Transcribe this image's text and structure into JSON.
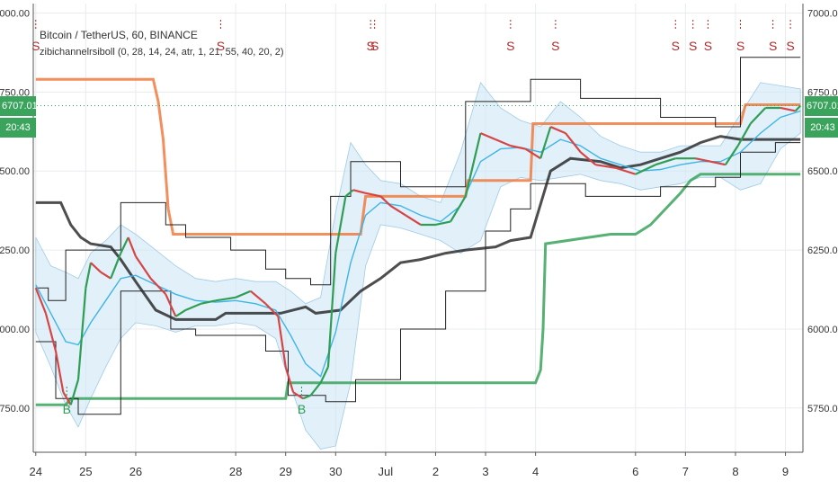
{
  "header": {
    "symbol": "Bitcoin / TetherUS, 60, BINANCE",
    "indicator": "zibichannelrsiboll (0, 28, 14, 24, atr, 1, 21, 55, 40, 20, 2)"
  },
  "price_badge": {
    "price": "6707.01",
    "time": "20:43",
    "color": "#3aa35c"
  },
  "colors": {
    "up_candle": "#2e9e55",
    "down_candle": "#d64545",
    "upper_stop": "#f07b3f",
    "lower_stop": "#3aa35c",
    "channel_black": "#222222",
    "ma_blue": "#3eb5e5",
    "bollinger_fill": "#cfe6f5",
    "sell_mark": "#b02a2a",
    "buy_mark": "#2e9e55",
    "grid": "#e8ecef"
  },
  "chart_data": {
    "type": "line",
    "title": "Bitcoin / TetherUS, 60, BINANCE",
    "y_ticks": [
      "7000.00",
      "6750.00",
      "6500.00",
      "6250.00",
      "6000.00",
      "5750.00"
    ],
    "ylim": [
      5610,
      7030
    ],
    "x_ticks": [
      {
        "label": "24",
        "x": 0
      },
      {
        "label": "25",
        "x": 1
      },
      {
        "label": "26",
        "x": 2
      },
      {
        "label": "28",
        "x": 4
      },
      {
        "label": "29",
        "x": 5
      },
      {
        "label": "30",
        "x": 6
      },
      {
        "label": "Jul",
        "x": 7
      },
      {
        "label": "2",
        "x": 8
      },
      {
        "label": "3",
        "x": 9
      },
      {
        "label": "4",
        "x": 10
      },
      {
        "label": "6",
        "x": 12
      },
      {
        "label": "7",
        "x": 13
      },
      {
        "label": "8",
        "x": 14
      },
      {
        "label": "9",
        "x": 15
      }
    ],
    "xlim": [
      -0.05,
      15.35
    ],
    "grid": true,
    "current_price": 6707.01,
    "price_series": [
      [
        0.0,
        6130
      ],
      [
        0.2,
        6050
      ],
      [
        0.4,
        5930
      ],
      [
        0.55,
        5800
      ],
      [
        0.7,
        5760
      ],
      [
        0.85,
        5840
      ],
      [
        1.0,
        6130
      ],
      [
        1.1,
        6210
      ],
      [
        1.3,
        6180
      ],
      [
        1.5,
        6160
      ],
      [
        1.7,
        6240
      ],
      [
        1.85,
        6290
      ],
      [
        2.0,
        6230
      ],
      [
        2.3,
        6160
      ],
      [
        2.6,
        6110
      ],
      [
        2.8,
        6040
      ],
      [
        3.0,
        6060
      ],
      [
        3.3,
        6080
      ],
      [
        3.6,
        6090
      ],
      [
        4.0,
        6100
      ],
      [
        4.3,
        6120
      ],
      [
        4.6,
        6080
      ],
      [
        4.85,
        6040
      ],
      [
        5.0,
        5880
      ],
      [
        5.15,
        5800
      ],
      [
        5.35,
        5780
      ],
      [
        5.5,
        5790
      ],
      [
        5.7,
        5830
      ],
      [
        5.85,
        5880
      ],
      [
        6.0,
        6240
      ],
      [
        6.2,
        6420
      ],
      [
        6.35,
        6440
      ],
      [
        6.6,
        6430
      ],
      [
        6.9,
        6420
      ],
      [
        7.1,
        6390
      ],
      [
        7.4,
        6360
      ],
      [
        7.7,
        6330
      ],
      [
        8.0,
        6330
      ],
      [
        8.3,
        6340
      ],
      [
        8.6,
        6420
      ],
      [
        8.9,
        6620
      ],
      [
        9.2,
        6600
      ],
      [
        9.5,
        6580
      ],
      [
        9.8,
        6570
      ],
      [
        10.1,
        6540
      ],
      [
        10.3,
        6640
      ],
      [
        10.6,
        6620
      ],
      [
        10.9,
        6560
      ],
      [
        11.2,
        6520
      ],
      [
        11.6,
        6510
      ],
      [
        12.0,
        6490
      ],
      [
        12.4,
        6520
      ],
      [
        12.8,
        6540
      ],
      [
        13.2,
        6540
      ],
      [
        13.5,
        6530
      ],
      [
        13.8,
        6520
      ],
      [
        14.05,
        6580
      ],
      [
        14.3,
        6650
      ],
      [
        14.6,
        6700
      ],
      [
        14.9,
        6700
      ],
      [
        15.2,
        6690
      ],
      [
        15.3,
        6707
      ]
    ],
    "ma_series": [
      [
        0.0,
        6140
      ],
      [
        0.3,
        6050
      ],
      [
        0.6,
        5960
      ],
      [
        0.85,
        5950
      ],
      [
        1.1,
        6020
      ],
      [
        1.4,
        6090
      ],
      [
        1.7,
        6160
      ],
      [
        2.0,
        6170
      ],
      [
        2.4,
        6140
      ],
      [
        2.8,
        6110
      ],
      [
        3.2,
        6090
      ],
      [
        3.6,
        6085
      ],
      [
        4.0,
        6090
      ],
      [
        4.4,
        6080
      ],
      [
        4.8,
        6060
      ],
      [
        5.1,
        5980
      ],
      [
        5.4,
        5890
      ],
      [
        5.7,
        5850
      ],
      [
        6.0,
        5990
      ],
      [
        6.3,
        6210
      ],
      [
        6.6,
        6360
      ],
      [
        6.9,
        6400
      ],
      [
        7.3,
        6390
      ],
      [
        7.7,
        6360
      ],
      [
        8.1,
        6340
      ],
      [
        8.5,
        6390
      ],
      [
        8.9,
        6530
      ],
      [
        9.3,
        6570
      ],
      [
        9.7,
        6575
      ],
      [
        10.1,
        6560
      ],
      [
        10.5,
        6600
      ],
      [
        10.9,
        6580
      ],
      [
        11.3,
        6540
      ],
      [
        11.7,
        6520
      ],
      [
        12.1,
        6500
      ],
      [
        12.5,
        6505
      ],
      [
        12.9,
        6520
      ],
      [
        13.3,
        6530
      ],
      [
        13.7,
        6530
      ],
      [
        14.1,
        6560
      ],
      [
        14.5,
        6620
      ],
      [
        14.9,
        6670
      ],
      [
        15.3,
        6690
      ]
    ],
    "band_upper": [
      [
        0.0,
        6290
      ],
      [
        0.3,
        6200
      ],
      [
        0.6,
        6180
      ],
      [
        0.85,
        6160
      ],
      [
        1.1,
        6240
      ],
      [
        1.4,
        6280
      ],
      [
        1.7,
        6330
      ],
      [
        2.0,
        6300
      ],
      [
        2.4,
        6250
      ],
      [
        2.8,
        6200
      ],
      [
        3.2,
        6160
      ],
      [
        3.6,
        6150
      ],
      [
        4.0,
        6160
      ],
      [
        4.4,
        6150
      ],
      [
        4.8,
        6150
      ],
      [
        5.1,
        6120
      ],
      [
        5.4,
        6080
      ],
      [
        5.7,
        6100
      ],
      [
        6.0,
        6370
      ],
      [
        6.3,
        6590
      ],
      [
        6.6,
        6520
      ],
      [
        6.9,
        6470
      ],
      [
        7.3,
        6460
      ],
      [
        7.7,
        6420
      ],
      [
        8.1,
        6400
      ],
      [
        8.5,
        6560
      ],
      [
        8.9,
        6780
      ],
      [
        9.3,
        6700
      ],
      [
        9.7,
        6660
      ],
      [
        10.1,
        6640
      ],
      [
        10.5,
        6720
      ],
      [
        10.9,
        6670
      ],
      [
        11.3,
        6610
      ],
      [
        11.7,
        6580
      ],
      [
        12.1,
        6560
      ],
      [
        12.5,
        6560
      ],
      [
        12.9,
        6580
      ],
      [
        13.3,
        6580
      ],
      [
        13.7,
        6580
      ],
      [
        14.1,
        6680
      ],
      [
        14.5,
        6780
      ],
      [
        14.9,
        6770
      ],
      [
        15.3,
        6760
      ]
    ],
    "band_lower": [
      [
        0.0,
        5990
      ],
      [
        0.3,
        5880
      ],
      [
        0.6,
        5760
      ],
      [
        0.85,
        5690
      ],
      [
        1.1,
        5780
      ],
      [
        1.4,
        5880
      ],
      [
        1.7,
        5970
      ],
      [
        2.0,
        6020
      ],
      [
        2.4,
        6010
      ],
      [
        2.8,
        5990
      ],
      [
        3.2,
        6010
      ],
      [
        3.6,
        6010
      ],
      [
        4.0,
        6020
      ],
      [
        4.4,
        6010
      ],
      [
        4.8,
        5970
      ],
      [
        5.1,
        5820
      ],
      [
        5.4,
        5680
      ],
      [
        5.7,
        5620
      ],
      [
        6.0,
        5630
      ],
      [
        6.3,
        5830
      ],
      [
        6.6,
        6200
      ],
      [
        6.9,
        6330
      ],
      [
        7.3,
        6320
      ],
      [
        7.7,
        6300
      ],
      [
        8.1,
        6280
      ],
      [
        8.5,
        6240
      ],
      [
        8.9,
        6280
      ],
      [
        9.3,
        6450
      ],
      [
        9.7,
        6480
      ],
      [
        10.1,
        6470
      ],
      [
        10.5,
        6480
      ],
      [
        10.9,
        6490
      ],
      [
        11.3,
        6470
      ],
      [
        11.7,
        6460
      ],
      [
        12.1,
        6440
      ],
      [
        12.5,
        6450
      ],
      [
        12.9,
        6460
      ],
      [
        13.3,
        6480
      ],
      [
        13.7,
        6480
      ],
      [
        14.1,
        6440
      ],
      [
        14.5,
        6460
      ],
      [
        14.9,
        6570
      ],
      [
        15.3,
        6620
      ]
    ],
    "upper_stop": [
      [
        0.0,
        6790
      ],
      [
        2.35,
        6790
      ],
      [
        2.45,
        6720
      ],
      [
        2.55,
        6600
      ],
      [
        2.65,
        6380
      ],
      [
        2.75,
        6300
      ],
      [
        6.5,
        6300
      ],
      [
        6.6,
        6420
      ],
      [
        8.6,
        6420
      ],
      [
        8.65,
        6470
      ],
      [
        9.9,
        6470
      ],
      [
        9.95,
        6650
      ],
      [
        14.1,
        6650
      ],
      [
        14.2,
        6710
      ],
      [
        15.3,
        6710
      ]
    ],
    "lower_stop": [
      [
        0.0,
        5760
      ],
      [
        0.6,
        5760
      ],
      [
        0.7,
        5780
      ],
      [
        5.0,
        5780
      ],
      [
        5.05,
        5830
      ],
      [
        10.0,
        5830
      ],
      [
        10.1,
        5870
      ],
      [
        10.15,
        6000
      ],
      [
        10.2,
        6270
      ],
      [
        11.5,
        6300
      ],
      [
        12.0,
        6300
      ],
      [
        12.3,
        6330
      ],
      [
        12.9,
        6430
      ],
      [
        13.1,
        6470
      ],
      [
        13.3,
        6490
      ],
      [
        15.3,
        6490
      ]
    ],
    "channel_thick": [
      [
        0.0,
        6400
      ],
      [
        0.5,
        6400
      ],
      [
        0.7,
        6330
      ],
      [
        0.9,
        6290
      ],
      [
        1.1,
        6270
      ],
      [
        1.5,
        6260
      ],
      [
        1.7,
        6220
      ],
      [
        2.0,
        6150
      ],
      [
        2.4,
        6060
      ],
      [
        2.8,
        6030
      ],
      [
        3.6,
        6030
      ],
      [
        3.8,
        6050
      ],
      [
        4.9,
        6050
      ],
      [
        5.4,
        6070
      ],
      [
        5.6,
        6050
      ],
      [
        6.1,
        6060
      ],
      [
        6.5,
        6120
      ],
      [
        6.9,
        6160
      ],
      [
        7.3,
        6210
      ],
      [
        7.7,
        6220
      ],
      [
        8.2,
        6240
      ],
      [
        8.6,
        6250
      ],
      [
        9.2,
        6260
      ],
      [
        9.5,
        6280
      ],
      [
        9.9,
        6290
      ],
      [
        10.3,
        6500
      ],
      [
        10.7,
        6540
      ],
      [
        11.3,
        6530
      ],
      [
        11.7,
        6510
      ],
      [
        12.1,
        6520
      ],
      [
        12.5,
        6540
      ],
      [
        12.9,
        6560
      ],
      [
        13.3,
        6590
      ],
      [
        13.7,
        6610
      ],
      [
        14.1,
        6600
      ],
      [
        14.5,
        6600
      ],
      [
        15.3,
        6600
      ]
    ],
    "channel_upper_thin": [
      [
        0.0,
        6130
      ],
      [
        0.25,
        6130
      ],
      [
        0.25,
        6090
      ],
      [
        0.6,
        6090
      ],
      [
        0.6,
        6250
      ],
      [
        1.0,
        6250
      ],
      [
        1.0,
        6250
      ],
      [
        1.7,
        6250
      ],
      [
        1.7,
        6400
      ],
      [
        2.6,
        6400
      ],
      [
        2.6,
        6330
      ],
      [
        3.0,
        6330
      ],
      [
        3.0,
        6290
      ],
      [
        3.9,
        6290
      ],
      [
        3.9,
        6250
      ],
      [
        4.6,
        6250
      ],
      [
        4.6,
        6190
      ],
      [
        5.0,
        6190
      ],
      [
        5.0,
        6160
      ],
      [
        5.5,
        6160
      ],
      [
        5.5,
        6140
      ],
      [
        5.9,
        6140
      ],
      [
        5.9,
        6420
      ],
      [
        6.3,
        6420
      ],
      [
        6.3,
        6530
      ],
      [
        7.3,
        6530
      ],
      [
        7.3,
        6450
      ],
      [
        8.6,
        6450
      ],
      [
        8.6,
        6720
      ],
      [
        9.4,
        6720
      ],
      [
        9.4,
        6720
      ],
      [
        9.9,
        6720
      ],
      [
        9.9,
        6790
      ],
      [
        10.9,
        6790
      ],
      [
        10.9,
        6730
      ],
      [
        12.5,
        6730
      ],
      [
        12.5,
        6670
      ],
      [
        13.6,
        6670
      ],
      [
        13.6,
        6640
      ],
      [
        14.1,
        6640
      ],
      [
        14.1,
        6860
      ],
      [
        15.3,
        6860
      ]
    ],
    "channel_lower_thin": [
      [
        0.0,
        5960
      ],
      [
        0.4,
        5960
      ],
      [
        0.4,
        5780
      ],
      [
        0.85,
        5780
      ],
      [
        0.85,
        5730
      ],
      [
        1.7,
        5730
      ],
      [
        1.7,
        6120
      ],
      [
        2.7,
        6120
      ],
      [
        2.7,
        6000
      ],
      [
        3.2,
        6000
      ],
      [
        3.2,
        5980
      ],
      [
        4.6,
        5980
      ],
      [
        4.6,
        5930
      ],
      [
        5.05,
        5930
      ],
      [
        5.05,
        5790
      ],
      [
        5.8,
        5790
      ],
      [
        5.8,
        5770
      ],
      [
        6.4,
        5770
      ],
      [
        6.4,
        5840
      ],
      [
        7.3,
        5840
      ],
      [
        7.3,
        6000
      ],
      [
        8.2,
        6000
      ],
      [
        8.2,
        6120
      ],
      [
        9.0,
        6120
      ],
      [
        9.0,
        6310
      ],
      [
        9.5,
        6310
      ],
      [
        9.5,
        6380
      ],
      [
        9.9,
        6380
      ],
      [
        9.9,
        6460
      ],
      [
        11.0,
        6460
      ],
      [
        11.0,
        6420
      ],
      [
        12.5,
        6420
      ],
      [
        12.5,
        6450
      ],
      [
        13.6,
        6450
      ],
      [
        13.6,
        6480
      ],
      [
        14.1,
        6480
      ],
      [
        14.1,
        6560
      ],
      [
        14.8,
        6560
      ],
      [
        14.8,
        6590
      ],
      [
        15.3,
        6590
      ]
    ],
    "sell_signals": [
      {
        "x": 0.0,
        "label": "S"
      },
      {
        "x": 3.7,
        "label": "S"
      },
      {
        "x": 6.7,
        "label": "S"
      },
      {
        "x": 6.78,
        "label": "S"
      },
      {
        "x": 9.5,
        "label": "S"
      },
      {
        "x": 10.4,
        "label": "S"
      },
      {
        "x": 12.8,
        "label": "S"
      },
      {
        "x": 13.15,
        "label": "S"
      },
      {
        "x": 13.45,
        "label": "S"
      },
      {
        "x": 14.1,
        "label": "S"
      },
      {
        "x": 14.75,
        "label": "S"
      },
      {
        "x": 15.1,
        "label": "S"
      }
    ],
    "buy_signals": [
      {
        "x": 0.62,
        "label": "B"
      },
      {
        "x": 5.32,
        "label": "B"
      }
    ]
  }
}
